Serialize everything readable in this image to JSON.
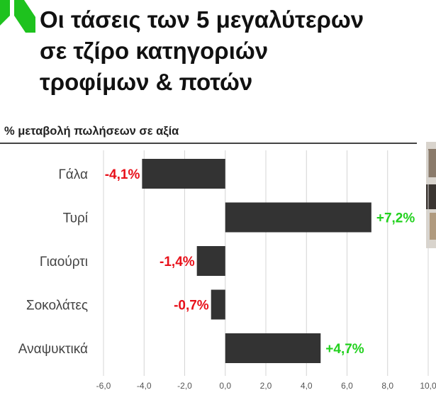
{
  "title_lines": [
    "Οι τάσεις των 5 μεγαλύτερων",
    "σε τζίρο κατηγοριών",
    "τροφίμων & ποτών"
  ],
  "chart_data": {
    "type": "bar",
    "orientation": "horizontal",
    "title": "% μεταβολή πωλήσεων σε αξία",
    "categories": [
      "Γάλα",
      "Τυρί",
      "Γιαούρτι",
      "Σοκολάτες",
      "Αναψυκτικά"
    ],
    "values": [
      -4.1,
      7.2,
      -1.4,
      -0.7,
      4.7
    ],
    "data_labels": [
      "-4,1%",
      "+7,2%",
      "-1,4%",
      "-0,7%",
      "+4,7%"
    ],
    "xlim": [
      -6,
      10
    ],
    "xticks": [
      "-6,0",
      "-4,0",
      "-2,0",
      "0,0",
      "2,0",
      "4,0",
      "6,0",
      "8,0",
      "10,0"
    ],
    "grid": true,
    "bar_color": "#333333",
    "negative_label_color": "#e8101a",
    "positive_label_color": "#22d11e"
  },
  "colors": {
    "brand_green": "#1ec21e",
    "title_text": "#111111"
  }
}
